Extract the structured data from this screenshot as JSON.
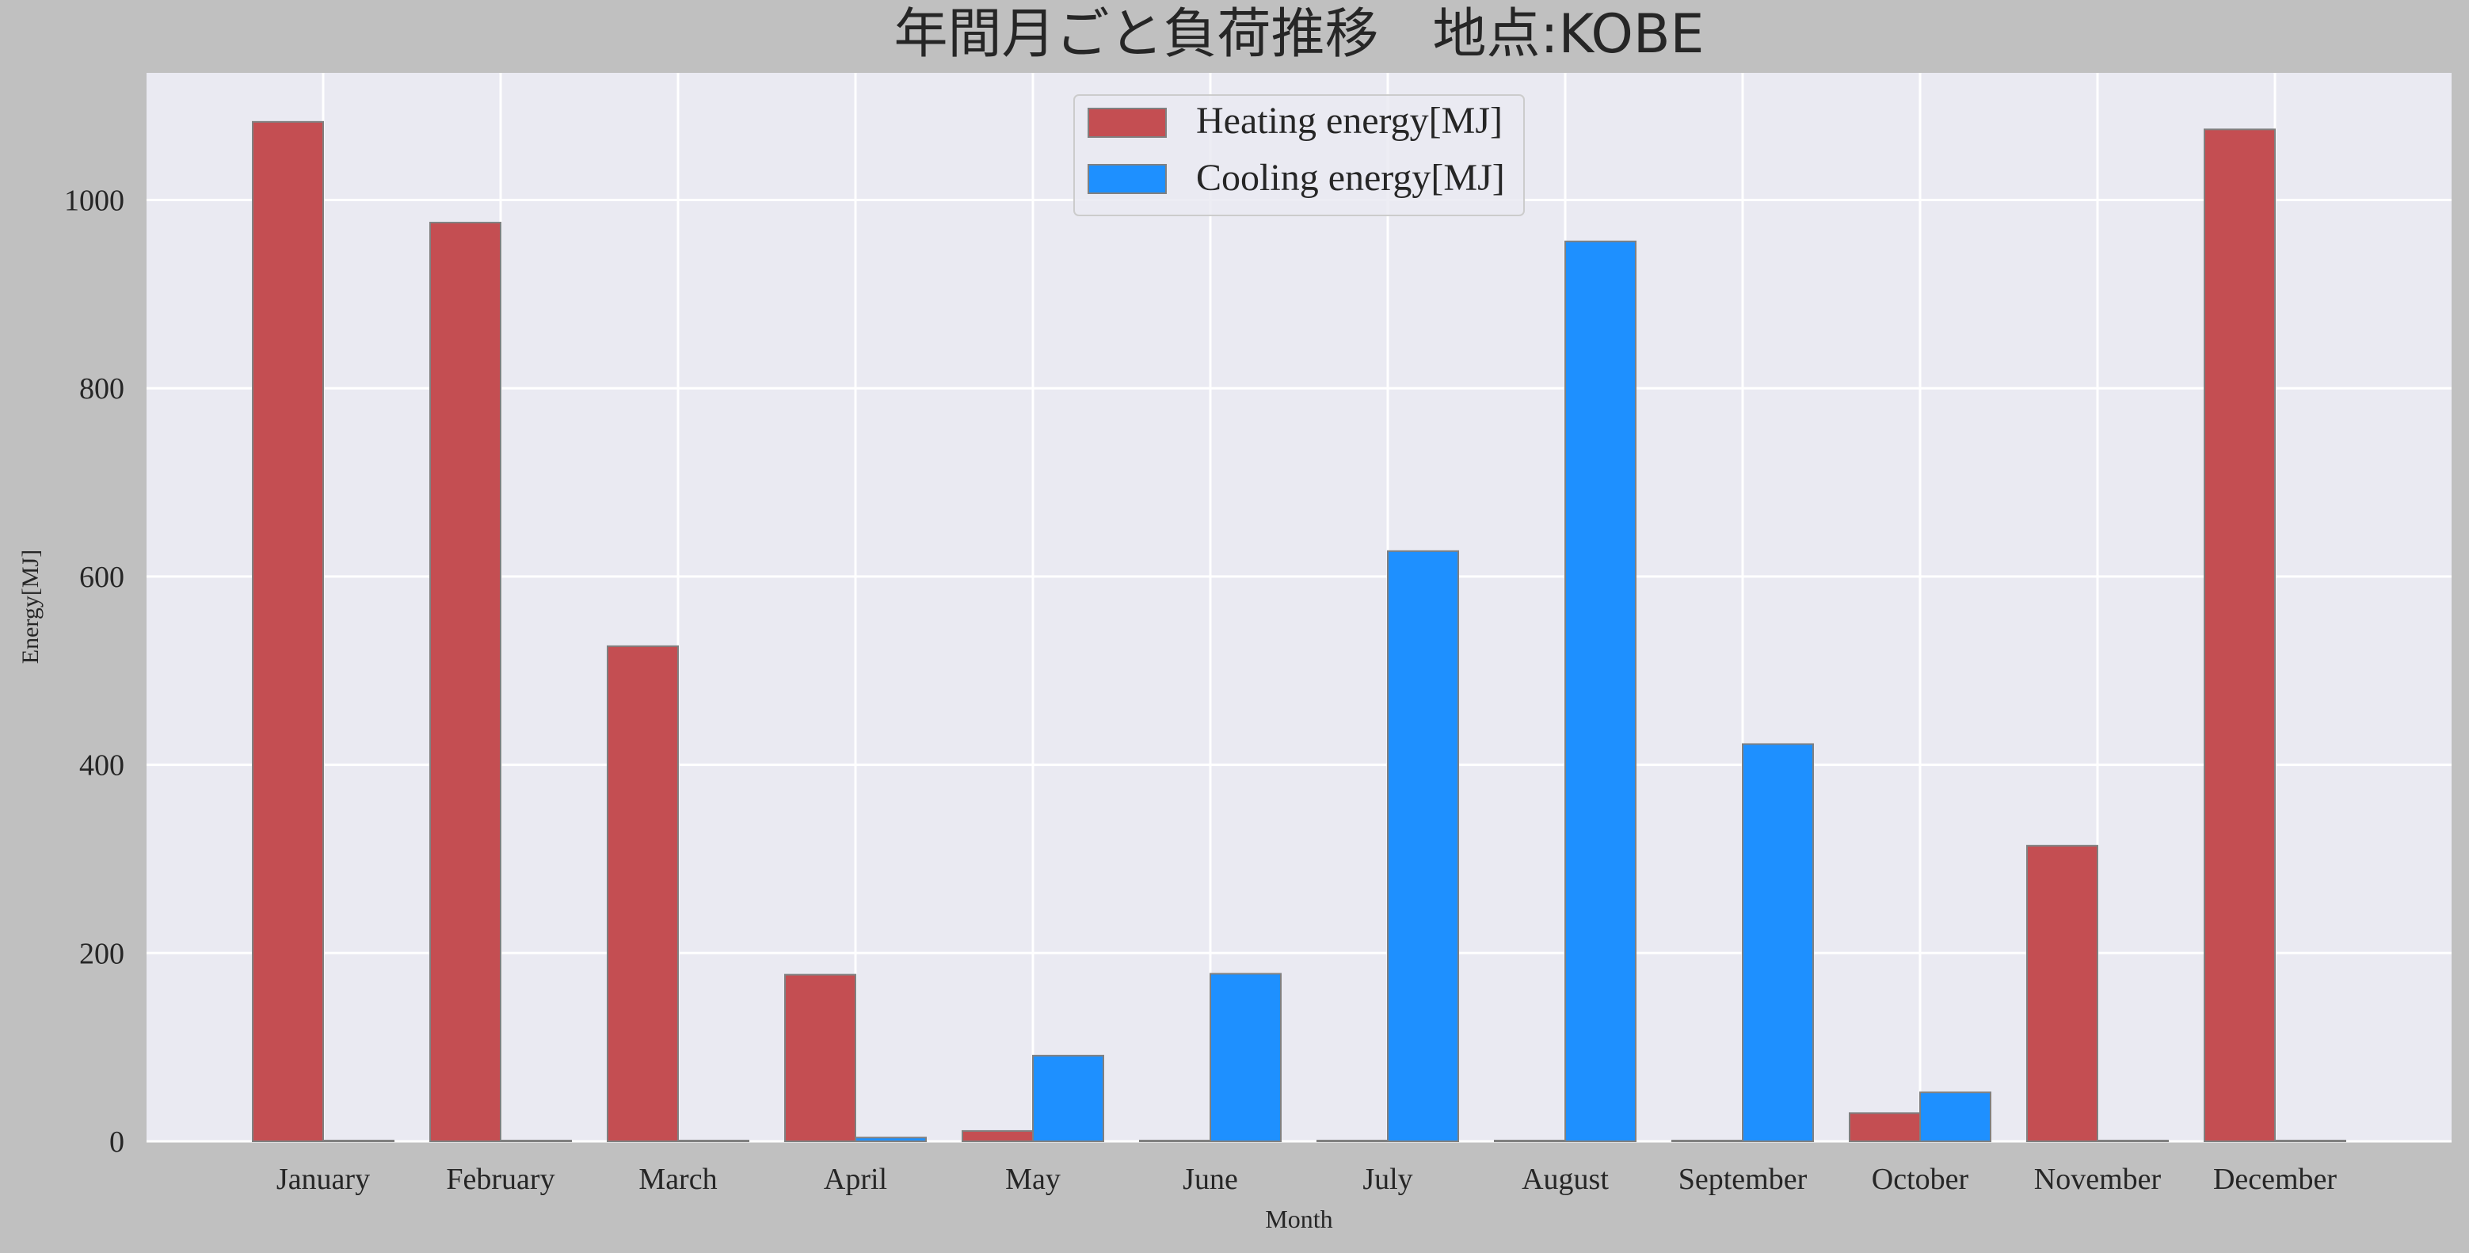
{
  "chart_data": {
    "type": "bar",
    "title": "年間月ごと負荷推移　地点:KOBE",
    "xlabel": "Month",
    "ylabel": "Energy[MJ]",
    "categories": [
      "January",
      "February",
      "March",
      "April",
      "May",
      "June",
      "July",
      "August",
      "September",
      "October",
      "November",
      "December"
    ],
    "series": [
      {
        "name": "Heating energy[MJ]",
        "color": "#c44e52",
        "values": [
          1083,
          976,
          526,
          177,
          11,
          0,
          0,
          0,
          0,
          30,
          314,
          1075
        ]
      },
      {
        "name": "Cooling energy[MJ]",
        "color": "#1e90ff",
        "values": [
          0,
          0,
          0,
          4,
          91,
          178,
          627,
          956,
          422,
          52,
          0,
          0
        ]
      }
    ],
    "ylim": [
      0,
      1120
    ],
    "yticks": [
      0,
      200,
      400,
      600,
      800,
      1000
    ],
    "grid": true,
    "legend_position": "top-center",
    "colors": {
      "figure_bg": "#c0c0c0",
      "plot_bg": "#eaeaf2",
      "grid": "#ffffff",
      "bar_edge": "#808080"
    }
  }
}
